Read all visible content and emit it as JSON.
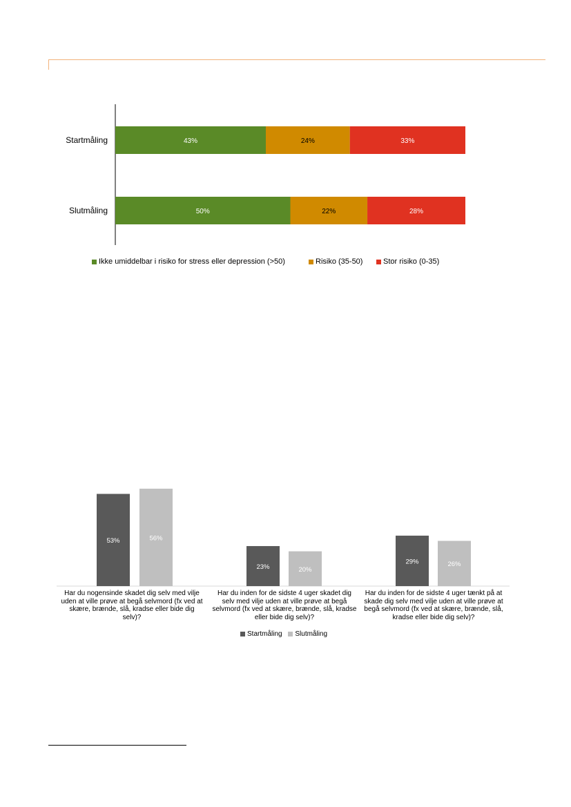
{
  "chart_data": [
    {
      "type": "bar",
      "orientation": "horizontal",
      "stacked": true,
      "normalized_percent": true,
      "categories": [
        "Startmåling",
        "Slutmåling"
      ],
      "series": [
        {
          "name": "Ikke umiddelbar i risiko for stress eller depression (>50)",
          "values": [
            43,
            50
          ],
          "labels": [
            "43%",
            "50%"
          ],
          "color": "#5a8a27"
        },
        {
          "name": "Risiko (35-50)",
          "values": [
            24,
            22
          ],
          "labels": [
            "24%",
            "22%"
          ],
          "color": "#d08a00"
        },
        {
          "name": "Stor risiko (0-35)",
          "values": [
            33,
            28
          ],
          "labels": [
            "33%",
            "28%"
          ],
          "color": "#e03221"
        }
      ],
      "xlim": [
        0,
        100
      ],
      "grid": false,
      "legend_position": "bottom"
    },
    {
      "type": "bar",
      "orientation": "vertical",
      "categories": [
        "Har du nogensinde skadet dig selv med vilje uden at ville prøve at begå selvmord (fx ved at skære, brænde, slå, kradse eller bide dig selv)?",
        "Har du inden for de sidste 4 uger skadet dig selv med vilje uden at ville prøve at begå selvmord (fx ved at skære, brænde, slå, kradse eller bide dig selv)?",
        "Har du inden for de sidste 4 uger tænkt på at skade dig selv med vilje uden at ville prøve at begå selvmord (fx ved at skære, brænde, slå, kradse eller bide dig selv)?"
      ],
      "series": [
        {
          "name": "Startmåling",
          "values": [
            53,
            23,
            29
          ],
          "labels": [
            "53%",
            "23%",
            "29%"
          ],
          "color": "#595959"
        },
        {
          "name": "Slutmåling",
          "values": [
            56,
            20,
            26
          ],
          "labels": [
            "56%",
            "20%",
            "26%"
          ],
          "color": "#bfbfbf"
        }
      ],
      "ylim": [
        0,
        60
      ],
      "grid": false,
      "legend_position": "bottom"
    }
  ]
}
